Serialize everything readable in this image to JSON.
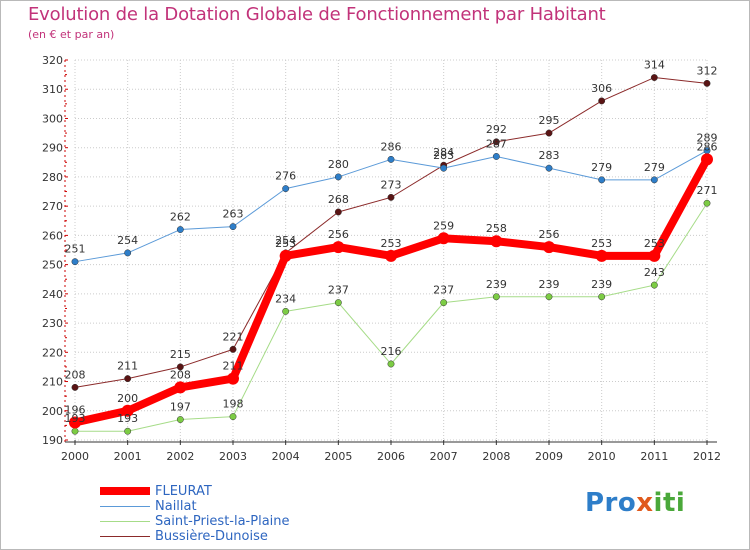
{
  "title": "Evolution de la Dotation Globale de Fonctionnement par Habitant",
  "subtitle": "(en € et par an)",
  "logo": "Proxiti",
  "colors": {
    "title": "#c2337a",
    "axis": "#333333",
    "grid": "#cccccc",
    "legend_text": "#2e66c0"
  },
  "chart_data": {
    "type": "line",
    "title": "Evolution de la Dotation Globale de Fonctionnement par Habitant",
    "subtitle": "(en € et par an)",
    "xlabel": "",
    "ylabel": "",
    "ylim": [
      190,
      320
    ],
    "yticks": [
      190,
      200,
      210,
      220,
      230,
      240,
      250,
      260,
      270,
      280,
      290,
      300,
      310,
      320
    ],
    "grid": true,
    "legend_position": "bottom-left",
    "categories": [
      "2000",
      "2001",
      "2002",
      "2003",
      "2004",
      "2005",
      "2006",
      "2007",
      "2008",
      "2009",
      "2010",
      "2011",
      "2012"
    ],
    "series": [
      {
        "name": "Bussière-Dunoise",
        "color": "#8b2a2a",
        "marker": "#5a1414",
        "width": 1,
        "values": [
          208,
          211,
          215,
          221,
          254,
          268,
          273,
          284,
          292,
          295,
          306,
          314,
          312
        ]
      },
      {
        "name": "Naillat",
        "color": "#5b9ad8",
        "marker": "#2e7ec9",
        "width": 1,
        "values": [
          251,
          254,
          262,
          263,
          276,
          280,
          286,
          283,
          287,
          283,
          279,
          279,
          289
        ]
      },
      {
        "name": "Saint-Priest-la-Plaine",
        "color": "#a6dc88",
        "marker": "#7ccc44",
        "width": 1,
        "values": [
          193,
          193,
          197,
          198,
          234,
          237,
          216,
          237,
          239,
          239,
          239,
          243,
          271
        ]
      },
      {
        "name": "FLEURAT",
        "color": "#ff0000",
        "marker": "#ff0000",
        "width": 8,
        "values": [
          196,
          200,
          208,
          211,
          253,
          256,
          253,
          259,
          258,
          256,
          253,
          253,
          286
        ]
      }
    ],
    "legend_order": [
      "FLEURAT",
      "Naillat",
      "Saint-Priest-la-Plaine",
      "Bussière-Dunoise"
    ]
  }
}
